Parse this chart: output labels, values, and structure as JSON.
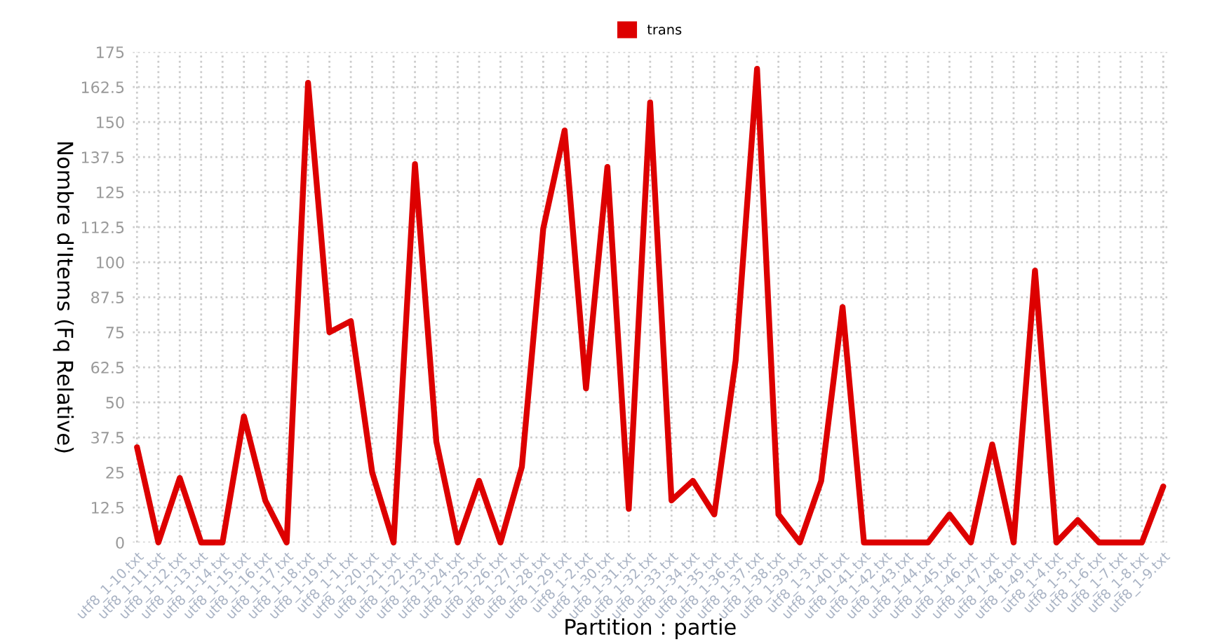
{
  "chart_data": {
    "type": "line",
    "xlabel": "Partition : partie",
    "ylabel": "Nombre d'Items (Fq Relative)",
    "categories": [
      "utf8_1-10.txt",
      "utf8_1-11.txt",
      "utf8_1-12.txt",
      "utf8_1-13.txt",
      "utf8_1-14.txt",
      "utf8_1-15.txt",
      "utf8_1-16.txt",
      "utf8_1-17.txt",
      "utf8_1-18.txt",
      "utf8_1-19.txt",
      "utf8_1-1.txt",
      "utf8_1-20.txt",
      "utf8_1-21.txt",
      "utf8_1-22.txt",
      "utf8_1-23.txt",
      "utf8_1-24.txt",
      "utf8_1-25.txt",
      "utf8_1-26.txt",
      "utf8_1-27.txt",
      "utf8_1-28.txt",
      "utf8_1-29.txt",
      "utf8_1-2.txt",
      "utf8_1-30.txt",
      "utf8_1-31.txt",
      "utf8_1-32.txt",
      "utf8_1-33.txt",
      "utf8_1-34.txt",
      "utf8_1-35.txt",
      "utf8_1-36.txt",
      "utf8_1-37.txt",
      "utf8_1-38.txt",
      "utf8_1-39.txt",
      "utf8_1-3.txt",
      "utf8_1-40.txt",
      "utf8_1-41.txt",
      "utf8_1-42.txt",
      "utf8_1-43.txt",
      "utf8_1-44.txt",
      "utf8_1-45.txt",
      "utf8_1-46.txt",
      "utf8_1-47.txt",
      "utf8_1-48.txt",
      "utf8_1-49.txt",
      "utf8_1-4.txt",
      "utf8_1-5.txt",
      "utf8_1-6.txt",
      "utf8_1-7.txt",
      "utf8_1-8.txt",
      "utf8_1-9.txt"
    ],
    "series": [
      {
        "name": "trans",
        "color": "#dd0000",
        "values": [
          34,
          0,
          23,
          0,
          0,
          45,
          15,
          0,
          164,
          75,
          79,
          25,
          0,
          135,
          36,
          0,
          22,
          0,
          27,
          112,
          147,
          55,
          134,
          12,
          157,
          15,
          22,
          10,
          65,
          169,
          10,
          0,
          22,
          84,
          0,
          0,
          0,
          0,
          10,
          0,
          35,
          0,
          97,
          0,
          8,
          0,
          0,
          0,
          20
        ]
      }
    ],
    "ylim": [
      0,
      175
    ],
    "yticks": [
      0,
      12.5,
      25,
      37.5,
      50,
      62.5,
      75,
      87.5,
      100,
      112.5,
      125,
      137.5,
      150,
      162.5,
      175
    ],
    "grid": true,
    "legend": "top",
    "marker": "none",
    "line_style": "solid"
  }
}
